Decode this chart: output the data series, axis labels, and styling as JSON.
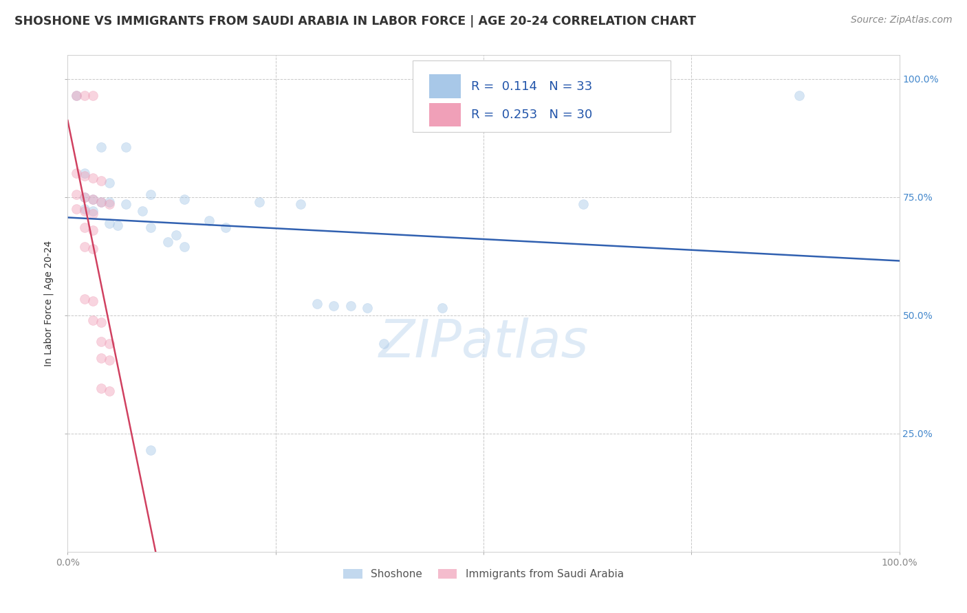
{
  "title": "SHOSHONE VS IMMIGRANTS FROM SAUDI ARABIA IN LABOR FORCE | AGE 20-24 CORRELATION CHART",
  "source_text": "Source: ZipAtlas.com",
  "ylabel": "In Labor Force | Age 20-24",
  "watermark": "ZIPatlas",
  "shoshone_points": [
    [
      0.01,
      0.965
    ],
    [
      0.04,
      0.855
    ],
    [
      0.07,
      0.855
    ],
    [
      0.02,
      0.8
    ],
    [
      0.05,
      0.78
    ],
    [
      0.02,
      0.75
    ],
    [
      0.03,
      0.745
    ],
    [
      0.04,
      0.74
    ],
    [
      0.05,
      0.74
    ],
    [
      0.07,
      0.735
    ],
    [
      0.02,
      0.725
    ],
    [
      0.03,
      0.72
    ],
    [
      0.05,
      0.695
    ],
    [
      0.06,
      0.69
    ],
    [
      0.1,
      0.755
    ],
    [
      0.14,
      0.745
    ],
    [
      0.09,
      0.72
    ],
    [
      0.17,
      0.7
    ],
    [
      0.19,
      0.685
    ],
    [
      0.23,
      0.74
    ],
    [
      0.28,
      0.735
    ],
    [
      0.1,
      0.685
    ],
    [
      0.13,
      0.67
    ],
    [
      0.12,
      0.655
    ],
    [
      0.14,
      0.645
    ],
    [
      0.3,
      0.525
    ],
    [
      0.32,
      0.52
    ],
    [
      0.34,
      0.52
    ],
    [
      0.36,
      0.515
    ],
    [
      0.45,
      0.515
    ],
    [
      0.62,
      0.735
    ],
    [
      0.38,
      0.44
    ],
    [
      0.1,
      0.215
    ],
    [
      0.88,
      0.965
    ]
  ],
  "saudi_points": [
    [
      0.01,
      0.965
    ],
    [
      0.02,
      0.965
    ],
    [
      0.03,
      0.965
    ],
    [
      0.01,
      0.8
    ],
    [
      0.02,
      0.795
    ],
    [
      0.03,
      0.79
    ],
    [
      0.04,
      0.785
    ],
    [
      0.01,
      0.755
    ],
    [
      0.02,
      0.75
    ],
    [
      0.03,
      0.745
    ],
    [
      0.04,
      0.74
    ],
    [
      0.05,
      0.735
    ],
    [
      0.01,
      0.725
    ],
    [
      0.02,
      0.72
    ],
    [
      0.03,
      0.715
    ],
    [
      0.02,
      0.685
    ],
    [
      0.03,
      0.68
    ],
    [
      0.02,
      0.645
    ],
    [
      0.03,
      0.64
    ],
    [
      0.02,
      0.535
    ],
    [
      0.03,
      0.53
    ],
    [
      0.03,
      0.49
    ],
    [
      0.04,
      0.485
    ],
    [
      0.04,
      0.445
    ],
    [
      0.05,
      0.44
    ],
    [
      0.04,
      0.41
    ],
    [
      0.05,
      0.405
    ],
    [
      0.04,
      0.345
    ],
    [
      0.05,
      0.34
    ]
  ],
  "xlim": [
    0.0,
    1.0
  ],
  "ylim": [
    0.0,
    1.05
  ],
  "dot_size": 100,
  "dot_alpha": 0.45,
  "shoshone_color": "#a8c8e8",
  "saudi_color": "#f0a0b8",
  "trendline_shoshone_color": "#3060b0",
  "trendline_saudi_color": "#d04060",
  "grid_color": "#c8c8c8",
  "background_color": "#ffffff",
  "title_color": "#333333",
  "title_fontsize": 12.5,
  "axis_label_fontsize": 10,
  "tick_fontsize": 10,
  "source_fontsize": 10,
  "watermark_fontsize": 55,
  "watermark_color": "#c8ddf0",
  "legend_color": "#2255aa"
}
